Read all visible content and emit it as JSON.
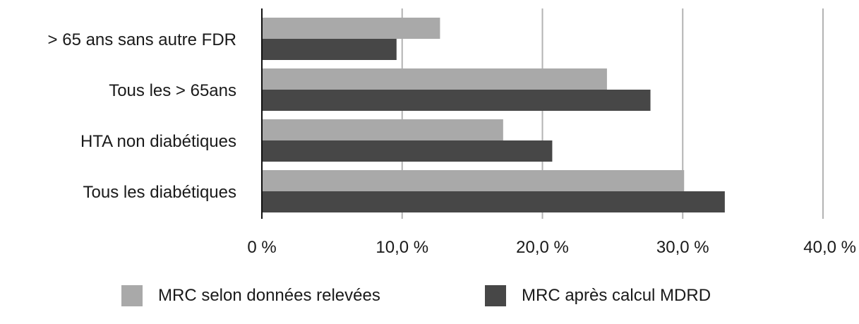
{
  "chart_data": {
    "type": "bar",
    "orientation": "horizontal",
    "categories": [
      "> 65 ans sans autre FDR",
      "Tous les > 65ans",
      "HTA non diabétiques",
      "Tous les diabétiques"
    ],
    "series": [
      {
        "name": "MRC selon données relevées",
        "color": "#a9a9a9",
        "values": [
          12.7,
          24.6,
          17.2,
          30.1
        ]
      },
      {
        "name": "MRC après calcul MDRD",
        "color": "#474747",
        "values": [
          9.6,
          27.7,
          20.7,
          33.0
        ]
      }
    ],
    "xlim": [
      0,
      40
    ],
    "xticks": [
      0,
      10,
      20,
      30,
      40
    ],
    "xtick_labels": [
      "0 %",
      "10,0 %",
      "20,0 %",
      "30,0 %",
      "40,0 %"
    ],
    "grid": "vertical",
    "legend": "bottom"
  }
}
